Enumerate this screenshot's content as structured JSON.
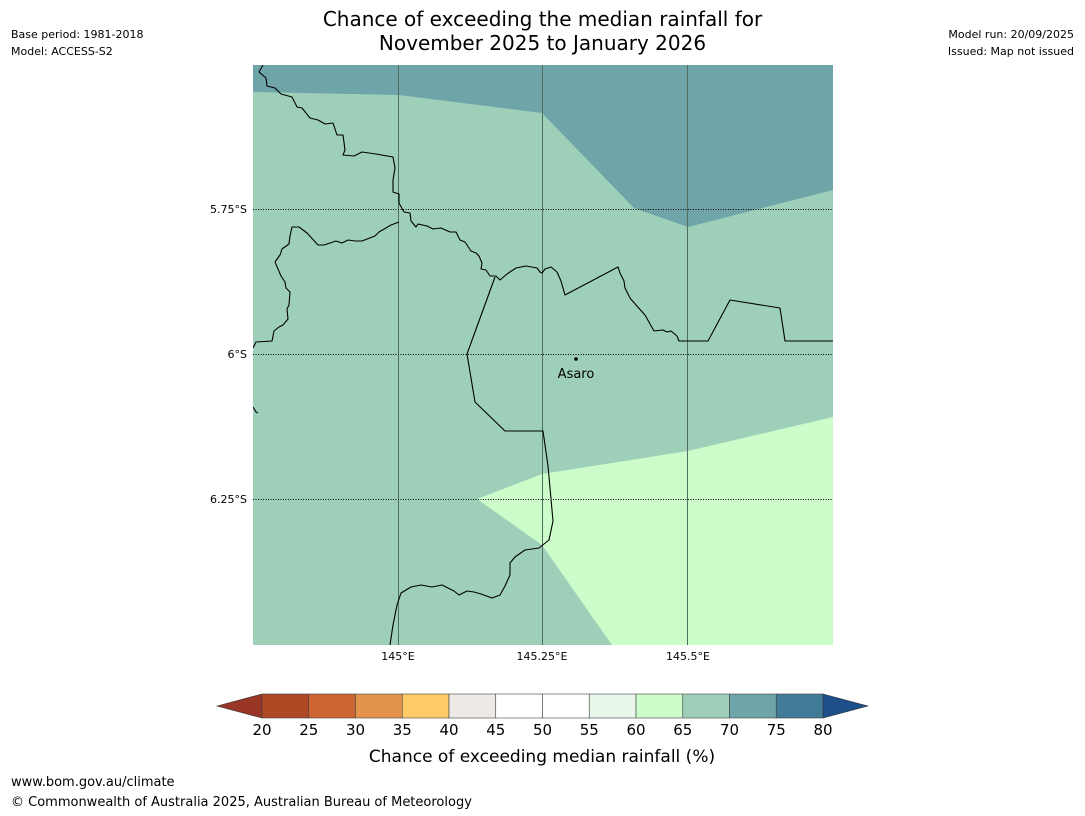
{
  "header": {
    "title_line1": "Chance of exceeding the median rainfall for",
    "title_line2": "November 2025 to January 2026",
    "base_period": "Base period: 1981-2018",
    "model": "Model: ACCESS-S2",
    "model_run": "Model run: 20/09/2025",
    "issued": "Issued: Map not issued"
  },
  "map": {
    "lat_labels": [
      "5.75°S",
      "6°S",
      "6.25°S"
    ],
    "lon_labels": [
      "145°E",
      "145.25°E",
      "145.5°E"
    ],
    "place": {
      "name": "Asaro"
    },
    "zone_colors": {
      "70-75": "#6fa5a8",
      "65-70": "#9ed0b9",
      "60-65": "#ccfcca"
    }
  },
  "legend": {
    "ticks": [
      "20",
      "25",
      "30",
      "35",
      "40",
      "45",
      "50",
      "55",
      "60",
      "65",
      "70",
      "75",
      "80"
    ],
    "colors": [
      "#b04825",
      "#cd6532",
      "#e3944a",
      "#fecb68",
      "#ede9e5",
      "#ffffff",
      "#ffffff",
      "#e9f6ea",
      "#ccfcca",
      "#9ed0b9",
      "#6fa5a8",
      "#417b98"
    ],
    "low_extend_color": "#983524",
    "high_extend_color": "#1d4f8a",
    "label": "Chance of exceeding median rainfall (%)"
  },
  "footer": {
    "url": "www.bom.gov.au/climate",
    "copyright": "© Commonwealth of Australia 2025, Australian Bureau of Meteorology"
  }
}
